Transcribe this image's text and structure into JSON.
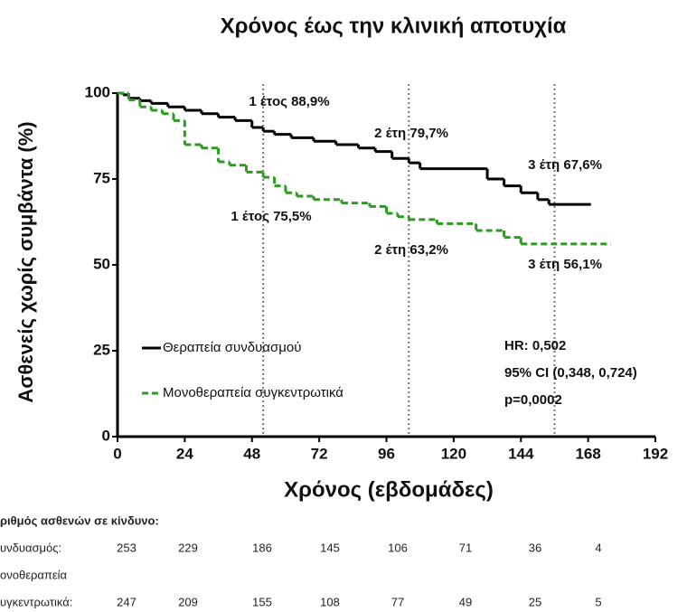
{
  "chart_data": {
    "type": "step",
    "title": "Χρόνος έως την κλινική αποτυχία",
    "x_label": "Χρόνος (εβδομάδες)",
    "y_label": "Ασθενείς χωρίς συμβάντα (%)",
    "xlim": [
      0,
      192
    ],
    "xticks": [
      0,
      24,
      48,
      72,
      96,
      120,
      144,
      168,
      192
    ],
    "ylim": [
      0,
      100
    ],
    "yticks": [
      0,
      25,
      50,
      75,
      100
    ],
    "reference_lines": [
      52,
      104,
      156
    ],
    "series": [
      {
        "name": "Θεραπεία συνδυασμού",
        "color": "#000000",
        "dashed": false,
        "x": [
          0,
          2,
          4,
          8,
          12,
          18,
          24,
          30,
          36,
          42,
          48,
          52,
          56,
          62,
          70,
          78,
          86,
          92,
          98,
          104,
          108,
          132,
          138,
          144,
          150,
          154,
          169
        ],
        "values": [
          100,
          99.5,
          98.5,
          97.8,
          97,
          96,
          95,
          94,
          93,
          92,
          90,
          88.9,
          88,
          87,
          86,
          85,
          84,
          83,
          81,
          79.7,
          78,
          75,
          73,
          71,
          69,
          67.6,
          67.6
        ]
      },
      {
        "name": "Μονοθεραπεία συγκεντρωτικά",
        "color": "#2e9a22",
        "dashed": true,
        "x": [
          0,
          4,
          8,
          12,
          16,
          20,
          24,
          30,
          36,
          40,
          46,
          52,
          56,
          60,
          64,
          70,
          80,
          90,
          96,
          100,
          104,
          114,
          128,
          138,
          144,
          176
        ],
        "values": [
          100,
          98,
          96,
          95,
          94,
          92,
          85,
          84,
          80,
          79,
          77,
          75.5,
          73,
          71,
          70,
          69,
          68,
          67,
          65,
          64,
          63.2,
          62,
          60,
          58,
          56.1,
          56.1
        ]
      }
    ],
    "annotations": [
      "1 έτος 88,9%",
      "2 έτη 79,7%",
      "3 έτη 67,6%",
      "1 έτος 75,5%",
      "2 έτη 63,2%",
      "3 έτη 56,1%",
      "HR: 0,502",
      "95% CI (0,348, 0,724)",
      "p=0,0002"
    ]
  },
  "risk_table": {
    "title": "ριθμός ασθενών σε κίνδυνο:",
    "rows": [
      {
        "label": [
          "υνδυασμός:"
        ],
        "values": [
          "253",
          "229",
          "186",
          "145",
          "106",
          "71",
          "36",
          "4"
        ]
      },
      {
        "label": [
          "ονοθεραπεία",
          "υγκεντρωτικά:"
        ],
        "values": [
          "247",
          "209",
          "155",
          "108",
          "77",
          "49",
          "25",
          "5"
        ]
      }
    ]
  }
}
